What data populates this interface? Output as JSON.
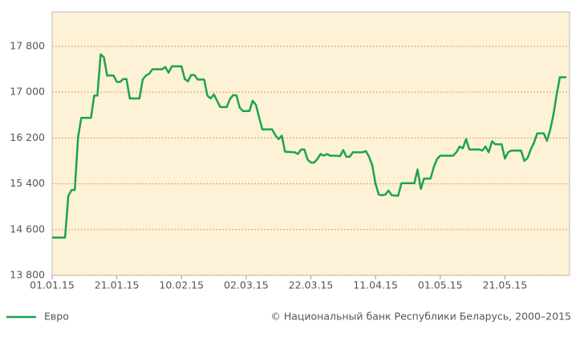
{
  "chart_data": {
    "type": "line",
    "x": [
      "01.01.15",
      "05.01.15",
      "06.01.15",
      "07.01.15",
      "08.01.15",
      "09.01.15",
      "10.01.15",
      "13.01.15",
      "14.01.15",
      "15.01.15",
      "16.01.15",
      "17.01.15",
      "18.01.15",
      "20.01.15",
      "21.01.15",
      "22.01.15",
      "23.01.15",
      "24.01.15",
      "25.01.15",
      "28.01.15",
      "29.01.15",
      "30.01.15",
      "31.01.15",
      "01.02.15",
      "04.02.15",
      "05.02.15",
      "06.02.15",
      "07.02.15",
      "10.02.15",
      "11.02.15",
      "12.02.15",
      "13.02.15",
      "14.02.15",
      "15.02.15",
      "17.02.15",
      "18.02.15",
      "19.02.15",
      "20.02.15",
      "21.02.15",
      "22.02.15",
      "24.02.15",
      "25.02.15",
      "26.02.15",
      "27.02.15",
      "28.02.15",
      "01.03.15",
      "03.03.15",
      "04.03.15",
      "05.03.15",
      "06.03.15",
      "07.03.15",
      "10.03.15",
      "11.03.15",
      "12.03.15",
      "13.03.15",
      "14.03.15",
      "17.03.15",
      "18.03.15",
      "19.03.15",
      "20.03.15",
      "21.03.15",
      "22.03.15",
      "23.03.15",
      "24.03.15",
      "25.03.15",
      "26.03.15",
      "27.03.15",
      "28.03.15",
      "30.03.15",
      "31.03.15",
      "01.04.15",
      "02.04.15",
      "03.04.15",
      "04.04.15",
      "07.04.15",
      "08.04.15",
      "09.04.15",
      "10.04.15",
      "11.04.15",
      "12.04.15",
      "13.04.15",
      "14.04.15",
      "15.04.15",
      "16.04.15",
      "18.04.15",
      "19.04.15",
      "23.04.15",
      "24.04.15",
      "25.04.15",
      "26.04.15",
      "28.04.15",
      "29.04.15",
      "30.04.15",
      "01.05.15",
      "05.05.15",
      "06.05.15",
      "07.05.15",
      "08.05.15",
      "09.05.15",
      "10.05.15",
      "13.05.15",
      "14.05.15",
      "15.05.15",
      "16.05.15",
      "17.05.15",
      "18.05.15",
      "20.05.15",
      "21.05.15",
      "22.05.15",
      "23.05.15",
      "26.05.15",
      "27.05.15",
      "28.05.15",
      "29.05.15",
      "30.05.15",
      "31.05.15",
      "02.06.15",
      "03.06.15",
      "04.06.15",
      "05.06.15",
      "06.06.15",
      "07.06.15",
      "09.06.15"
    ],
    "series": [
      {
        "name": "Евро",
        "color": "#1aa54a",
        "values": [
          14460,
          14460,
          15190,
          15290,
          15290,
          16210,
          16550,
          16550,
          16940,
          16940,
          17660,
          17610,
          17290,
          17290,
          17180,
          17180,
          17230,
          17230,
          16890,
          16890,
          17220,
          17290,
          17320,
          17400,
          17400,
          17440,
          17340,
          17450,
          17450,
          17230,
          17190,
          17300,
          17300,
          17220,
          17220,
          16940,
          16890,
          16960,
          16850,
          16740,
          16740,
          16880,
          16950,
          16940,
          16730,
          16670,
          16670,
          16850,
          16780,
          16560,
          16350,
          16350,
          16250,
          16180,
          16240,
          15960,
          15950,
          15920,
          16000,
          16000,
          15820,
          15770,
          15770,
          15830,
          15920,
          15890,
          15920,
          15890,
          15890,
          15880,
          15990,
          15870,
          15870,
          15950,
          15950,
          15970,
          15870,
          15720,
          15400,
          15210,
          15200,
          15210,
          15280,
          15200,
          15190,
          15410,
          15410,
          15650,
          15310,
          15490,
          15490,
          15690,
          15830,
          15890,
          15890,
          15950,
          16050,
          16020,
          16180,
          16000,
          16000,
          15980,
          16050,
          15950,
          16140,
          16090,
          16090,
          15840,
          15950,
          15980,
          15980,
          15800,
          15850,
          16000,
          16120,
          16280,
          16280,
          16150,
          16340,
          16600,
          16960,
          17260,
          17260
        ]
      }
    ],
    "xlim": [
      "01.01.15",
      "10.06.15"
    ],
    "xticks": [
      "01.01.15",
      "21.01.15",
      "10.02.15",
      "02.03.15",
      "22.03.15",
      "11.04.15",
      "01.05.15",
      "21.05.15"
    ],
    "ylim": [
      13800,
      18400
    ],
    "yticks": [
      {
        "value": 13800,
        "label": "13 800"
      },
      {
        "value": 14600,
        "label": "14 600"
      },
      {
        "value": 15400,
        "label": "15 400"
      },
      {
        "value": 16200,
        "label": "16 200"
      },
      {
        "value": 17000,
        "label": "17 000"
      },
      {
        "value": 17800,
        "label": "17 800"
      }
    ],
    "grid": true,
    "source": "© Национальный банк Республики Беларусь, 2000–2015"
  }
}
